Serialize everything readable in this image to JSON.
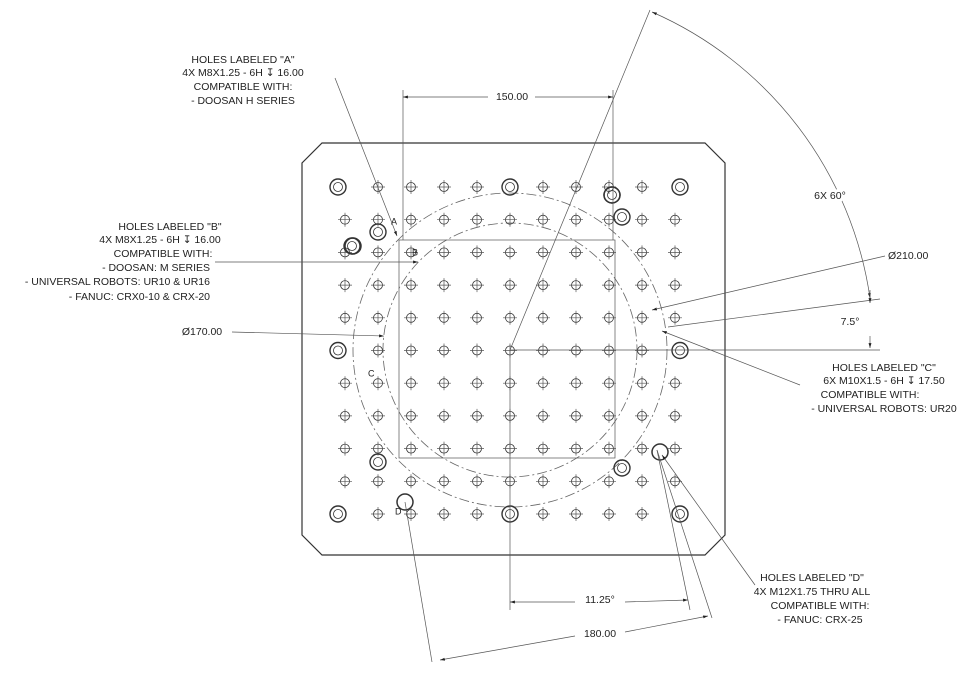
{
  "callouts": {
    "holes_a": [
      "HOLES LABELED \"A\"",
      "4X M8X1.25 - 6H ↧ 16.00",
      "COMPATIBLE WITH:",
      "- DOOSAN H SERIES"
    ],
    "holes_b": [
      "HOLES LABELED \"B\"",
      "4X M8X1.25 - 6H ↧ 16.00",
      "COMPATIBLE WITH:",
      "- DOOSAN: M SERIES",
      "- UNIVERSAL ROBOTS: UR10 & UR16",
      "- FANUC: CRX0-10 & CRX-20"
    ],
    "holes_c": [
      "HOLES LABELED \"C\"",
      "6X M10X1.5 - 6H ↧ 17.50",
      "COMPATIBLE WITH:",
      "- UNIVERSAL ROBOTS: UR20"
    ],
    "holes_d": [
      "HOLES LABELED \"D\"",
      "4X M12X1.75  THRU ALL",
      "COMPATIBLE WITH:",
      "- FANUC: CRX-25"
    ]
  },
  "dimensions": {
    "width_150": "150.00",
    "angle_60": "6X 60°",
    "dia_210": "Ø210.00",
    "angle_7_5": "7.5°",
    "dia_170": "Ø170.00",
    "angle_11_25": "11.25°",
    "width_180": "180.00"
  },
  "hole_letters": {
    "a": "A",
    "b": "B",
    "c": "C",
    "d": "D"
  }
}
